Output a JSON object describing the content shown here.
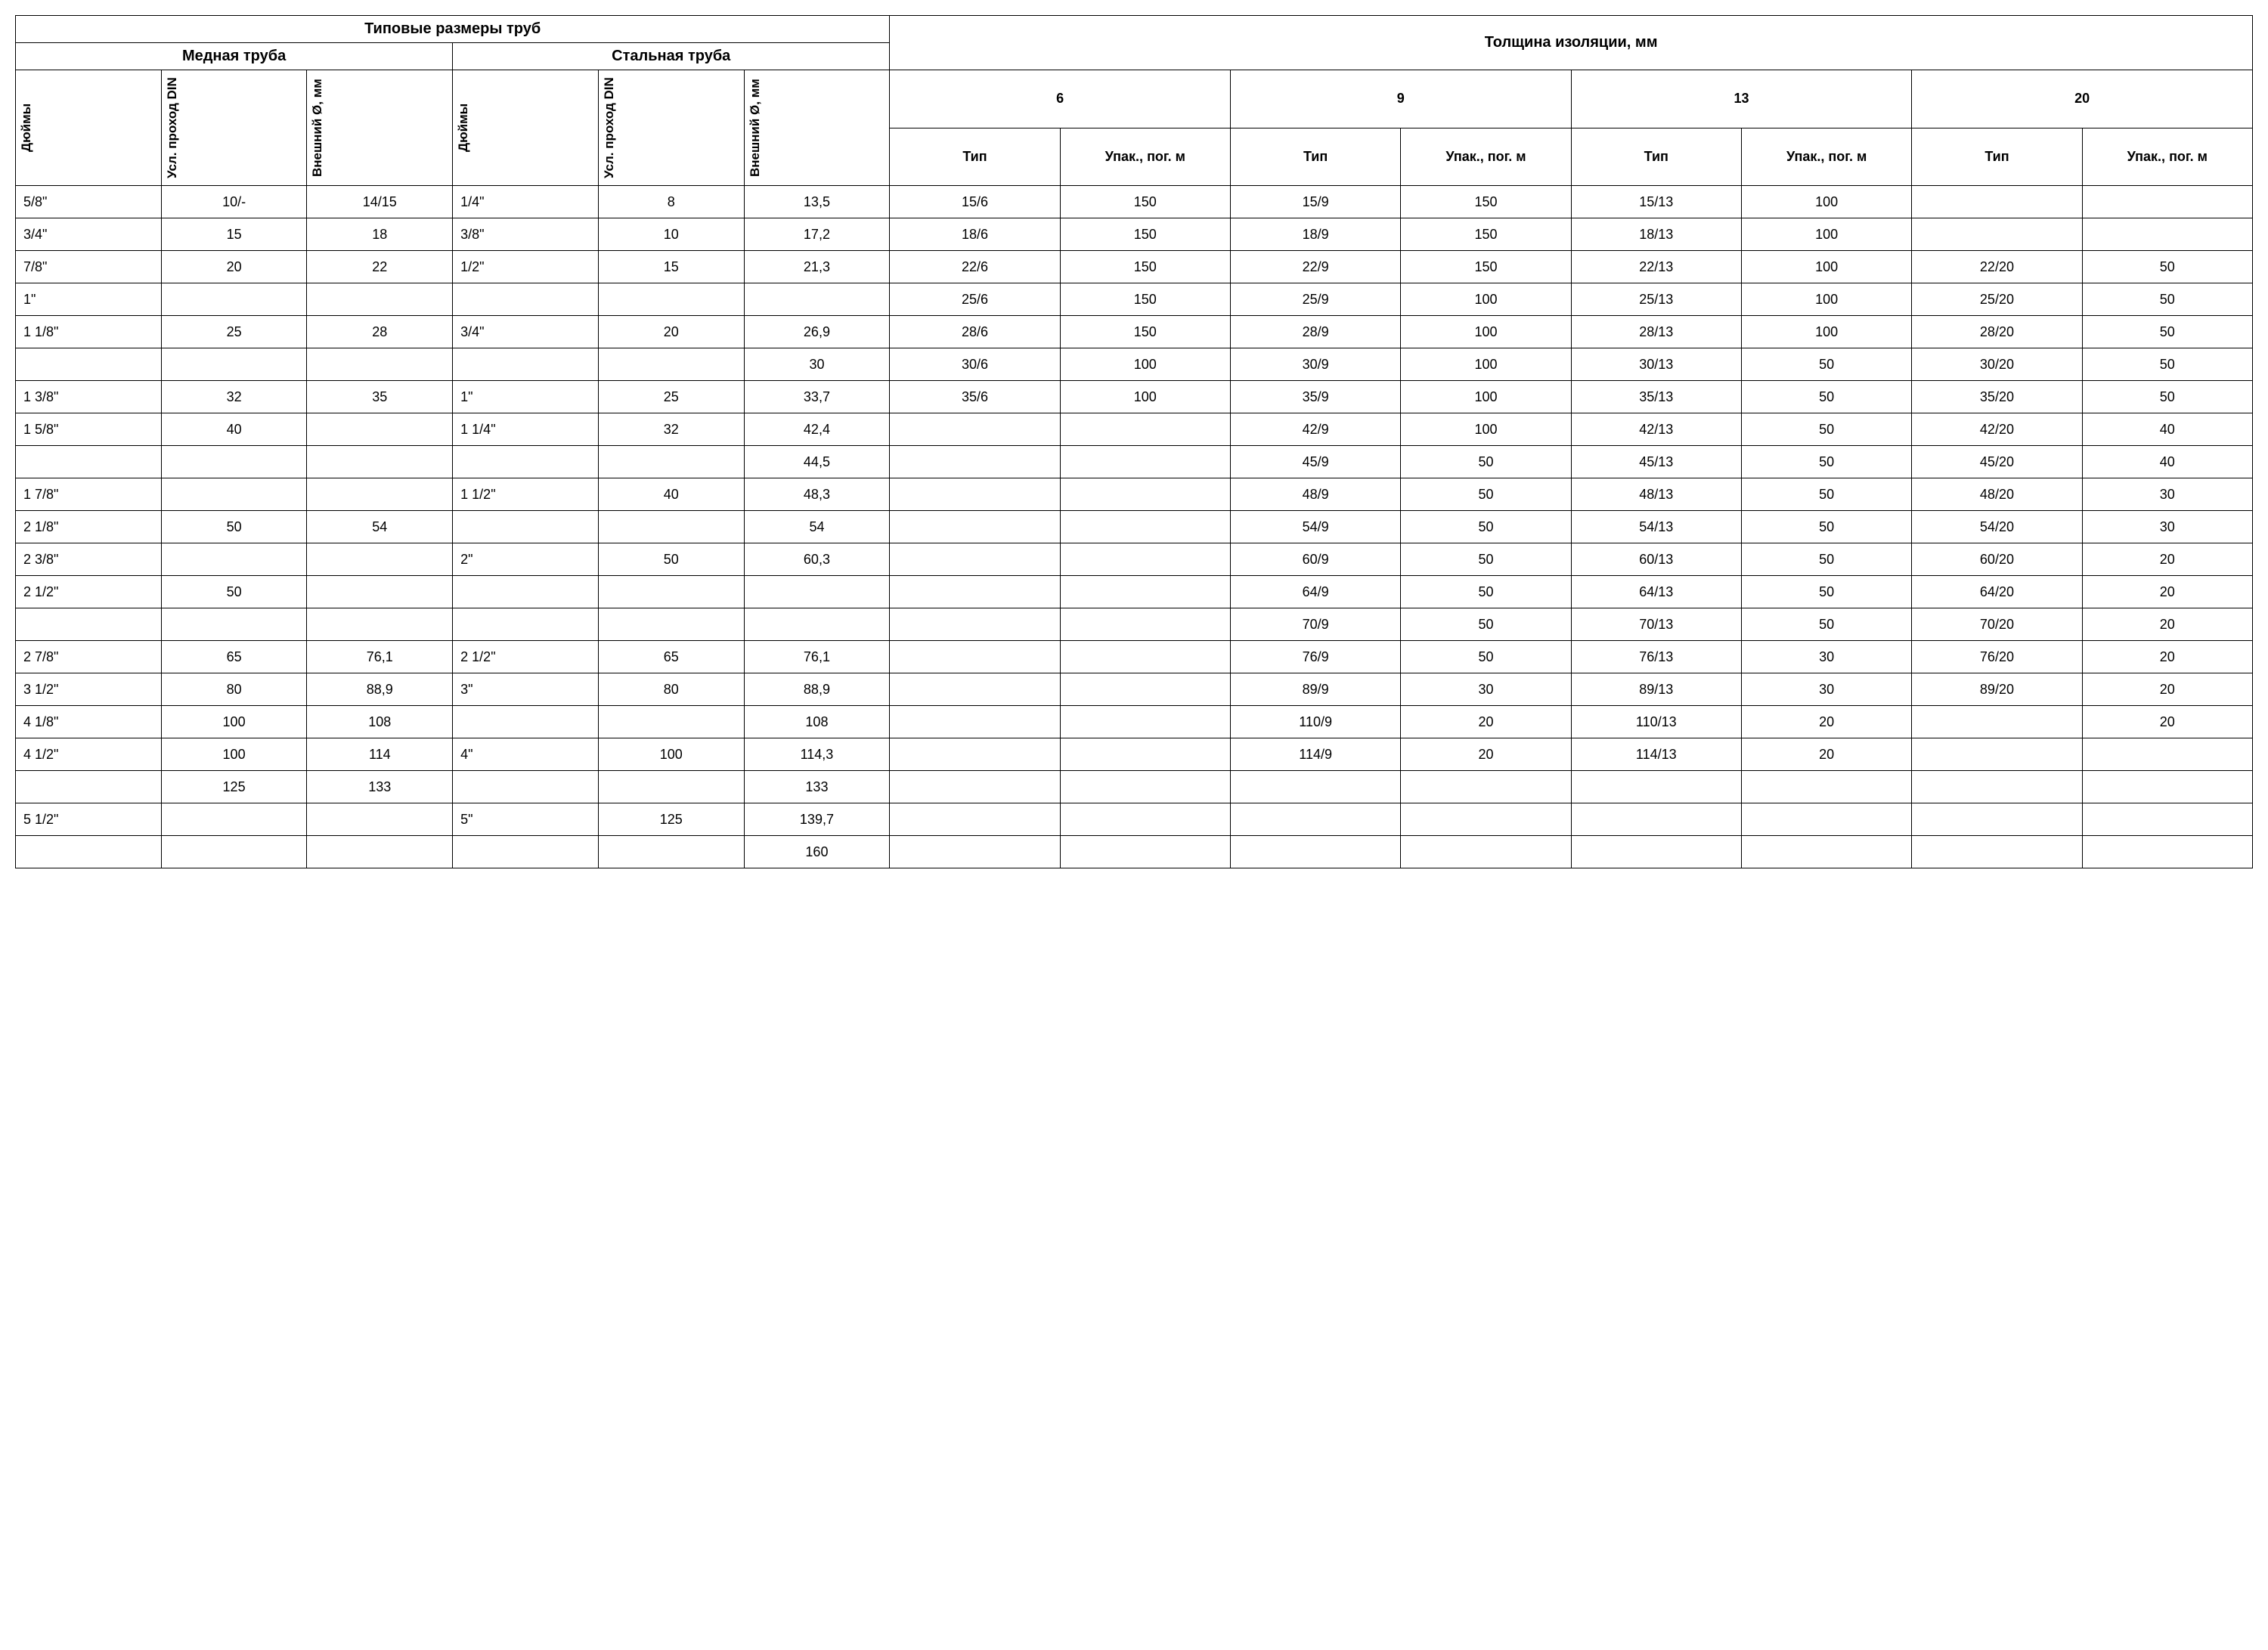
{
  "headers": {
    "pipe_sizes": "Типовые размеры труб",
    "insulation": "Толщина изоляции, мм",
    "copper": "Медная труба",
    "steel": "Стальная труба",
    "inches": "Дюймы",
    "din": "Усл. проход DIN",
    "ext_dia": "Внешний Ø, мм",
    "type": "Тип",
    "pack": "Упак., пог. м",
    "th6": "6",
    "th9": "9",
    "th13": "13",
    "th20": "20"
  },
  "columns": [
    "cu_in",
    "cu_din",
    "cu_ext",
    "st_in",
    "st_din",
    "st_ext",
    "t6",
    "p6",
    "t9",
    "p9",
    "t13",
    "p13",
    "t20",
    "p20"
  ],
  "rows": [
    [
      "5/8\"",
      "10/-",
      "14/15",
      "1/4\"",
      "8",
      "13,5",
      "15/6",
      "150",
      "15/9",
      "150",
      "15/13",
      "100",
      "",
      ""
    ],
    [
      "3/4\"",
      "15",
      "18",
      "3/8\"",
      "10",
      "17,2",
      "18/6",
      "150",
      "18/9",
      "150",
      "18/13",
      "100",
      "",
      ""
    ],
    [
      "7/8\"",
      "20",
      "22",
      "1/2\"",
      "15",
      "21,3",
      "22/6",
      "150",
      "22/9",
      "150",
      "22/13",
      "100",
      "22/20",
      "50"
    ],
    [
      "1\"",
      "",
      "",
      "",
      "",
      "",
      "25/6",
      "150",
      "25/9",
      "100",
      "25/13",
      "100",
      "25/20",
      "50"
    ],
    [
      "1 1/8\"",
      "25",
      "28",
      "3/4\"",
      "20",
      "26,9",
      "28/6",
      "150",
      "28/9",
      "100",
      "28/13",
      "100",
      "28/20",
      "50"
    ],
    [
      "",
      "",
      "",
      "",
      "",
      "30",
      "30/6",
      "100",
      "30/9",
      "100",
      "30/13",
      "50",
      "30/20",
      "50"
    ],
    [
      "1 3/8\"",
      "32",
      "35",
      "1\"",
      "25",
      "33,7",
      "35/6",
      "100",
      "35/9",
      "100",
      "35/13",
      "50",
      "35/20",
      "50"
    ],
    [
      "1 5/8\"",
      "40",
      "",
      "1 1/4\"",
      "32",
      "42,4",
      "",
      "",
      "42/9",
      "100",
      "42/13",
      "50",
      "42/20",
      "40"
    ],
    [
      "",
      "",
      "",
      "",
      "",
      "44,5",
      "",
      "",
      "45/9",
      "50",
      "45/13",
      "50",
      "45/20",
      "40"
    ],
    [
      "1 7/8\"",
      "",
      "",
      "1 1/2\"",
      "40",
      "48,3",
      "",
      "",
      "48/9",
      "50",
      "48/13",
      "50",
      "48/20",
      "30"
    ],
    [
      "2 1/8\"",
      "50",
      "54",
      "",
      "",
      "54",
      "",
      "",
      "54/9",
      "50",
      "54/13",
      "50",
      "54/20",
      "30"
    ],
    [
      "2 3/8\"",
      "",
      "",
      "2\"",
      "50",
      "60,3",
      "",
      "",
      "60/9",
      "50",
      "60/13",
      "50",
      "60/20",
      "20"
    ],
    [
      "2 1/2\"",
      "50",
      "",
      "",
      "",
      "",
      "",
      "",
      "64/9",
      "50",
      "64/13",
      "50",
      "64/20",
      "20"
    ],
    [
      "",
      "",
      "",
      "",
      "",
      "",
      "",
      "",
      "70/9",
      "50",
      "70/13",
      "50",
      "70/20",
      "20"
    ],
    [
      "2 7/8\"",
      "65",
      "76,1",
      "2 1/2\"",
      "65",
      "76,1",
      "",
      "",
      "76/9",
      "50",
      "76/13",
      "30",
      "76/20",
      "20"
    ],
    [
      "3 1/2\"",
      "80",
      "88,9",
      "3\"",
      "80",
      "88,9",
      "",
      "",
      "89/9",
      "30",
      "89/13",
      "30",
      "89/20",
      "20"
    ],
    [
      "4 1/8\"",
      "100",
      "108",
      "",
      "",
      "108",
      "",
      "",
      "110/9",
      "20",
      "110/13",
      "20",
      "",
      "20"
    ],
    [
      "4 1/2\"",
      "100",
      "114",
      "4\"",
      "100",
      "114,3",
      "",
      "",
      "114/9",
      "20",
      "114/13",
      "20",
      "",
      ""
    ],
    [
      "",
      "125",
      "133",
      "",
      "",
      "133",
      "",
      "",
      "",
      "",
      "",
      "",
      "",
      ""
    ],
    [
      "5 1/2\"",
      "",
      "",
      "5\"",
      "125",
      "139,7",
      "",
      "",
      "",
      "",
      "",
      "",
      "",
      ""
    ],
    [
      "",
      "",
      "",
      "",
      "",
      "160",
      "",
      "",
      "",
      "",
      "",
      "",
      "",
      ""
    ]
  ],
  "style": {
    "border_color": "#000000",
    "bg_color": "#ffffff",
    "text_color": "#000000",
    "header_font_size": 20,
    "body_font_size": 18,
    "vertical_header_font_size": 17,
    "col_widths_pct": [
      6.5,
      6.5,
      6.5,
      6.5,
      6.5,
      6.5,
      7.6,
      7.6,
      7.6,
      7.6,
      7.6,
      7.6,
      7.6,
      7.6
    ]
  }
}
